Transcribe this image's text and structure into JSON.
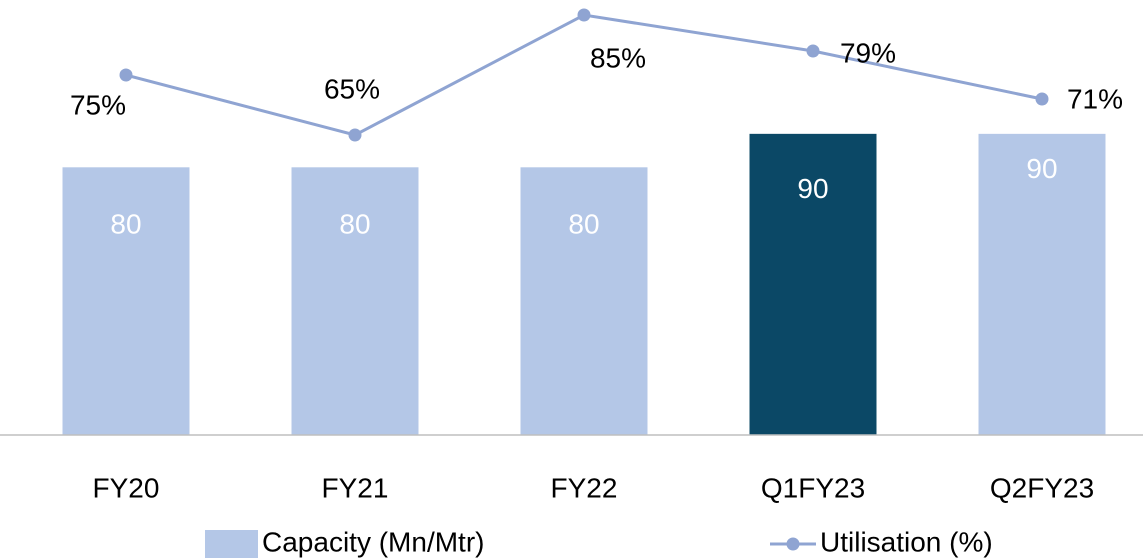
{
  "chart_data": {
    "type": "bar_line",
    "categories": [
      "FY20",
      "FY21",
      "FY22",
      "Q1FY23",
      "Q2FY23"
    ],
    "series": [
      {
        "name": "Capacity (Mn/Mtr)",
        "type": "bar",
        "color": "#b4c7e7",
        "colors": [
          "#b4c7e7",
          "#b4c7e7",
          "#b4c7e7",
          "#0b4866",
          "#b4c7e7"
        ],
        "values": [
          80,
          80,
          80,
          90,
          90
        ]
      },
      {
        "name": "Utilisation (%)",
        "type": "line",
        "axis": "y2",
        "color": "#8fa4d2",
        "values": [
          75,
          65,
          85,
          79,
          71
        ],
        "value_labels": [
          "75%",
          "65%",
          "85%",
          "79%",
          "71%"
        ]
      }
    ],
    "ylim": [
      0,
      130
    ],
    "y2lim": [
      15,
      87.5
    ]
  }
}
